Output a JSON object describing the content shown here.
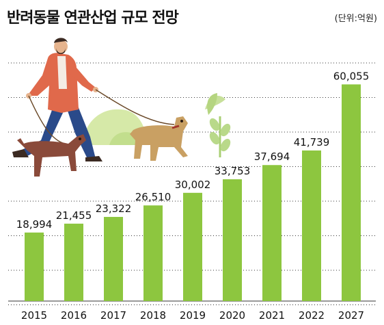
{
  "header": {
    "title": "반려동물 연관산업 규모 전망",
    "unit": "(단위:억원)"
  },
  "colors": {
    "bar": "#8dc63f",
    "grid": "#333333",
    "text": "#111111",
    "coat": "#e0694b",
    "pants": "#2a4a8a",
    "dog_brown": "#8a4a3a",
    "dog_tan": "#c9a063",
    "bush": "#d6e9a8",
    "leaf_green": "#a9cf74"
  },
  "illustration": {
    "description_icons": [
      "person-walking-dogs",
      "brown-dog-icon",
      "tan-dog-icon",
      "bush-icon",
      "plant-icon"
    ]
  },
  "chart_data": {
    "type": "bar",
    "title": "반려동물 연관산업 규모 전망",
    "unit": "(단위:억원)",
    "categories": [
      "2015",
      "2016",
      "2017",
      "2018",
      "2019",
      "2020",
      "2021",
      "2022",
      "2027"
    ],
    "values": [
      18994,
      21455,
      23322,
      26510,
      30002,
      33753,
      37694,
      41739,
      60055
    ],
    "value_labels": [
      "18,994",
      "21,455",
      "23,322",
      "26,510",
      "30,002",
      "33,753",
      "37,694",
      "41,739",
      "60,055"
    ],
    "ylim": [
      0,
      66000
    ],
    "grid": "dashed horizontal",
    "legend": "none"
  }
}
